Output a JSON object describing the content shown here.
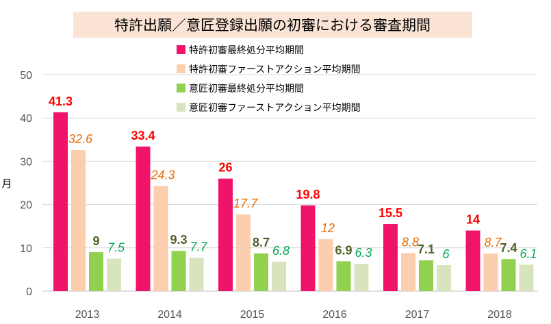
{
  "chart_data": {
    "type": "bar",
    "title": "特許出願／意匠登録出願の初審における審査期間",
    "ylabel": "月",
    "xlabel": "",
    "ylim": [
      0,
      50
    ],
    "yticks": [
      0,
      10,
      20,
      30,
      40,
      50
    ],
    "grid": true,
    "legend_position": "top-right",
    "categories": [
      "2013",
      "2014",
      "2015",
      "2016",
      "2017",
      "2018"
    ],
    "series": [
      {
        "name": "特許初審最終処分平均期間",
        "color": "#f0136a",
        "label_color": "#ff0000",
        "label_style": "bold",
        "values": [
          41.3,
          33.4,
          26,
          19.8,
          15.5,
          14
        ],
        "labels": [
          "41.3",
          "33.4",
          "26",
          "19.8",
          "15.5",
          "14"
        ]
      },
      {
        "name": "特許初審ファーストアクション平均期間",
        "color": "#fbcfad",
        "label_color": "#e46c0a",
        "label_style": "italic",
        "values": [
          32.6,
          24.3,
          17.7,
          12,
          8.8,
          8.7
        ],
        "labels": [
          "32.6",
          "24.3",
          "17.7",
          "12",
          "8.8",
          "8.7"
        ]
      },
      {
        "name": "意匠初審最終処分平均期間",
        "color": "#92d050",
        "label_color": "#4f6228",
        "label_style": "bold",
        "values": [
          9,
          9.3,
          8.7,
          6.9,
          7.1,
          7.4
        ],
        "labels": [
          "9",
          "9.3",
          "8.7",
          "6.9",
          "7.1",
          "7.4"
        ]
      },
      {
        "name": "意匠初審ファーストアクション平均期間",
        "color": "#d7e4bd",
        "label_color": "#00a651",
        "label_style": "italic",
        "values": [
          7.5,
          7.7,
          6.8,
          6.3,
          6,
          6.1
        ],
        "labels": [
          "7.5",
          "7.7",
          "6.8",
          "6.3",
          "6",
          "6.1"
        ]
      }
    ]
  }
}
